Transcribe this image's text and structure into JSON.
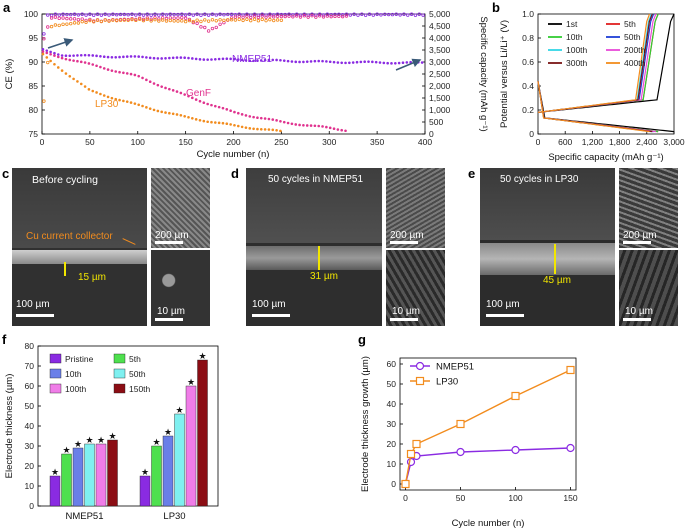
{
  "panel_labels": {
    "a": "a",
    "b": "b",
    "c": "c",
    "d": "d",
    "e": "e",
    "f": "f",
    "g": "g"
  },
  "chart_data": [
    {
      "id": "a",
      "type": "scatter",
      "xlabel": "Cycle number (n)",
      "ylabel": "CE (%)",
      "y2label": "Specific capacity (mAh g⁻¹)",
      "xlim": [
        0,
        400
      ],
      "ylim": [
        75,
        100
      ],
      "y2lim": [
        0,
        5000
      ],
      "xticks": [
        "0",
        "50",
        "100",
        "150",
        "200",
        "250",
        "300",
        "350",
        "400"
      ],
      "yticks": [
        "75",
        "80",
        "85",
        "90",
        "95",
        "100"
      ],
      "y2ticks": [
        "0",
        "500",
        "1,000",
        "1,500",
        "2,000",
        "2,500",
        "3,000",
        "3,500",
        "4,000",
        "4,500",
        "5,000"
      ],
      "series": [
        {
          "name": "NMEP51",
          "color": "#8a2be2",
          "ce_x": [
            2,
            5,
            10,
            20,
            50,
            100,
            150,
            200,
            250,
            300,
            350,
            400
          ],
          "ce": [
            96,
            99.6,
            99.8,
            99.9,
            99.9,
            99.9,
            99.9,
            99.9,
            99.9,
            99.9,
            99.9,
            99.9
          ],
          "cap_x": [
            1,
            5,
            20,
            50,
            100,
            150,
            200,
            250,
            300,
            350,
            400
          ],
          "cap": [
            3500,
            3450,
            3300,
            3250,
            3200,
            3150,
            3100,
            3050,
            3000,
            2980,
            2960
          ]
        },
        {
          "name": "GenF",
          "color": "#e0338f",
          "ce_x": [
            2,
            10,
            30,
            60,
            100,
            150,
            175,
            200,
            250,
            300,
            320
          ],
          "ce": [
            95,
            99.3,
            99.0,
            98.6,
            99.0,
            99.2,
            96.5,
            99.4,
            99.5,
            99.5,
            99.5
          ],
          "cap_x": [
            1,
            10,
            30,
            60,
            100,
            150,
            200,
            250,
            300,
            320
          ],
          "cap": [
            3400,
            3300,
            3100,
            2800,
            2400,
            1600,
            900,
            500,
            250,
            150
          ]
        },
        {
          "name": "LP30",
          "color": "#f28c1e",
          "ce_x": [
            2,
            10,
            50,
            100,
            150,
            200,
            250
          ],
          "ce": [
            82,
            97.5,
            98.5,
            98.8,
            98.5,
            98.8,
            98.7
          ],
          "cap_x": [
            1,
            10,
            30,
            50,
            100,
            150,
            200,
            250
          ],
          "cap": [
            3300,
            3000,
            2400,
            1800,
            1200,
            700,
            350,
            100
          ]
        }
      ],
      "annotations": [
        "NMEP51",
        "GenF",
        "LP30"
      ]
    },
    {
      "id": "b",
      "type": "line",
      "xlabel": "Specific capacity (mAh g⁻¹)",
      "ylabel": "Potential versus Li/Li⁺ (V)",
      "xlim": [
        0,
        3000
      ],
      "ylim": [
        0,
        1.0
      ],
      "xticks": [
        "0",
        "600",
        "1,200",
        "1,800",
        "2,400",
        "3,000"
      ],
      "yticks": [
        "0",
        "0.2",
        "0.4",
        "0.6",
        "0.8",
        "1.0"
      ],
      "series": [
        {
          "name": "1st",
          "color": "#000000",
          "cap": 3000
        },
        {
          "name": "5th",
          "color": "#e02020",
          "cap": 2650
        },
        {
          "name": "10th",
          "color": "#33cc33",
          "cap": 2650
        },
        {
          "name": "50th",
          "color": "#1f3fd6",
          "cap": 2550
        },
        {
          "name": "100th",
          "color": "#33d6e6",
          "cap": 2500
        },
        {
          "name": "200th",
          "color": "#e84ad8",
          "cap": 2600
        },
        {
          "name": "300th",
          "color": "#7a1414",
          "cap": 2520
        },
        {
          "name": "400th",
          "color": "#f28c1e",
          "cap": 2460
        }
      ]
    },
    {
      "id": "f",
      "type": "bar",
      "ylabel": "Electrode thickness (µm)",
      "ylim": [
        0,
        80
      ],
      "yticks": [
        "0",
        "10",
        "20",
        "30",
        "40",
        "50",
        "60",
        "70",
        "80"
      ],
      "categories": [
        "NMEP51",
        "LP30"
      ],
      "series": [
        {
          "name": "Pristine",
          "color": "#8a2be2",
          "values": [
            15,
            15
          ]
        },
        {
          "name": "10th",
          "color": "#6a7fe8",
          "values": [
            29,
            35
          ]
        },
        {
          "name": "100th",
          "color": "#f07de8",
          "values": [
            31,
            60
          ]
        },
        {
          "name": "5th",
          "color": "#4ee04e",
          "values": [
            26,
            30
          ]
        },
        {
          "name": "50th",
          "color": "#7ff0f0",
          "values": [
            31,
            46
          ]
        },
        {
          "name": "150th",
          "color": "#8b0d14",
          "values": [
            33,
            73
          ]
        }
      ]
    },
    {
      "id": "g",
      "type": "line",
      "xlabel": "Cycle number (n)",
      "ylabel": "Electrode thickness growth (µm)",
      "xlim": [
        0,
        150
      ],
      "ylim": [
        0,
        60
      ],
      "xticks": [
        "0",
        "50",
        "100",
        "150"
      ],
      "yticks": [
        "0",
        "10",
        "20",
        "30",
        "40",
        "50",
        "60"
      ],
      "x": [
        0,
        5,
        10,
        50,
        100,
        150
      ],
      "series": [
        {
          "name": "NMEP51",
          "color": "#8a2be2",
          "values": [
            0,
            11,
            14,
            16,
            17,
            18
          ]
        },
        {
          "name": "LP30",
          "color": "#f28c1e",
          "values": [
            0,
            15,
            20,
            30,
            44,
            57
          ]
        }
      ]
    }
  ],
  "sem": {
    "c": {
      "title": "Before cycling",
      "collector": "Cu current collector",
      "thickness": "15 µm",
      "scale_main": "100 µm",
      "scale_top": "200 µm",
      "scale_bottom": "10 µm"
    },
    "d": {
      "title": "50 cycles in NMEP51",
      "thickness": "31 µm",
      "scale_main": "100 µm",
      "scale_top": "200 µm",
      "scale_bottom": "10 µm"
    },
    "e": {
      "title": "50 cycles in LP30",
      "thickness": "45 µm",
      "scale_main": "100 µm",
      "scale_top": "200 µm",
      "scale_bottom": "10 µm"
    }
  },
  "colors": {
    "purple": "#8a2be2",
    "pink": "#e0338f",
    "orange": "#f28c1e",
    "arrow": "#3a5a78",
    "yellow": "#f2e600"
  }
}
